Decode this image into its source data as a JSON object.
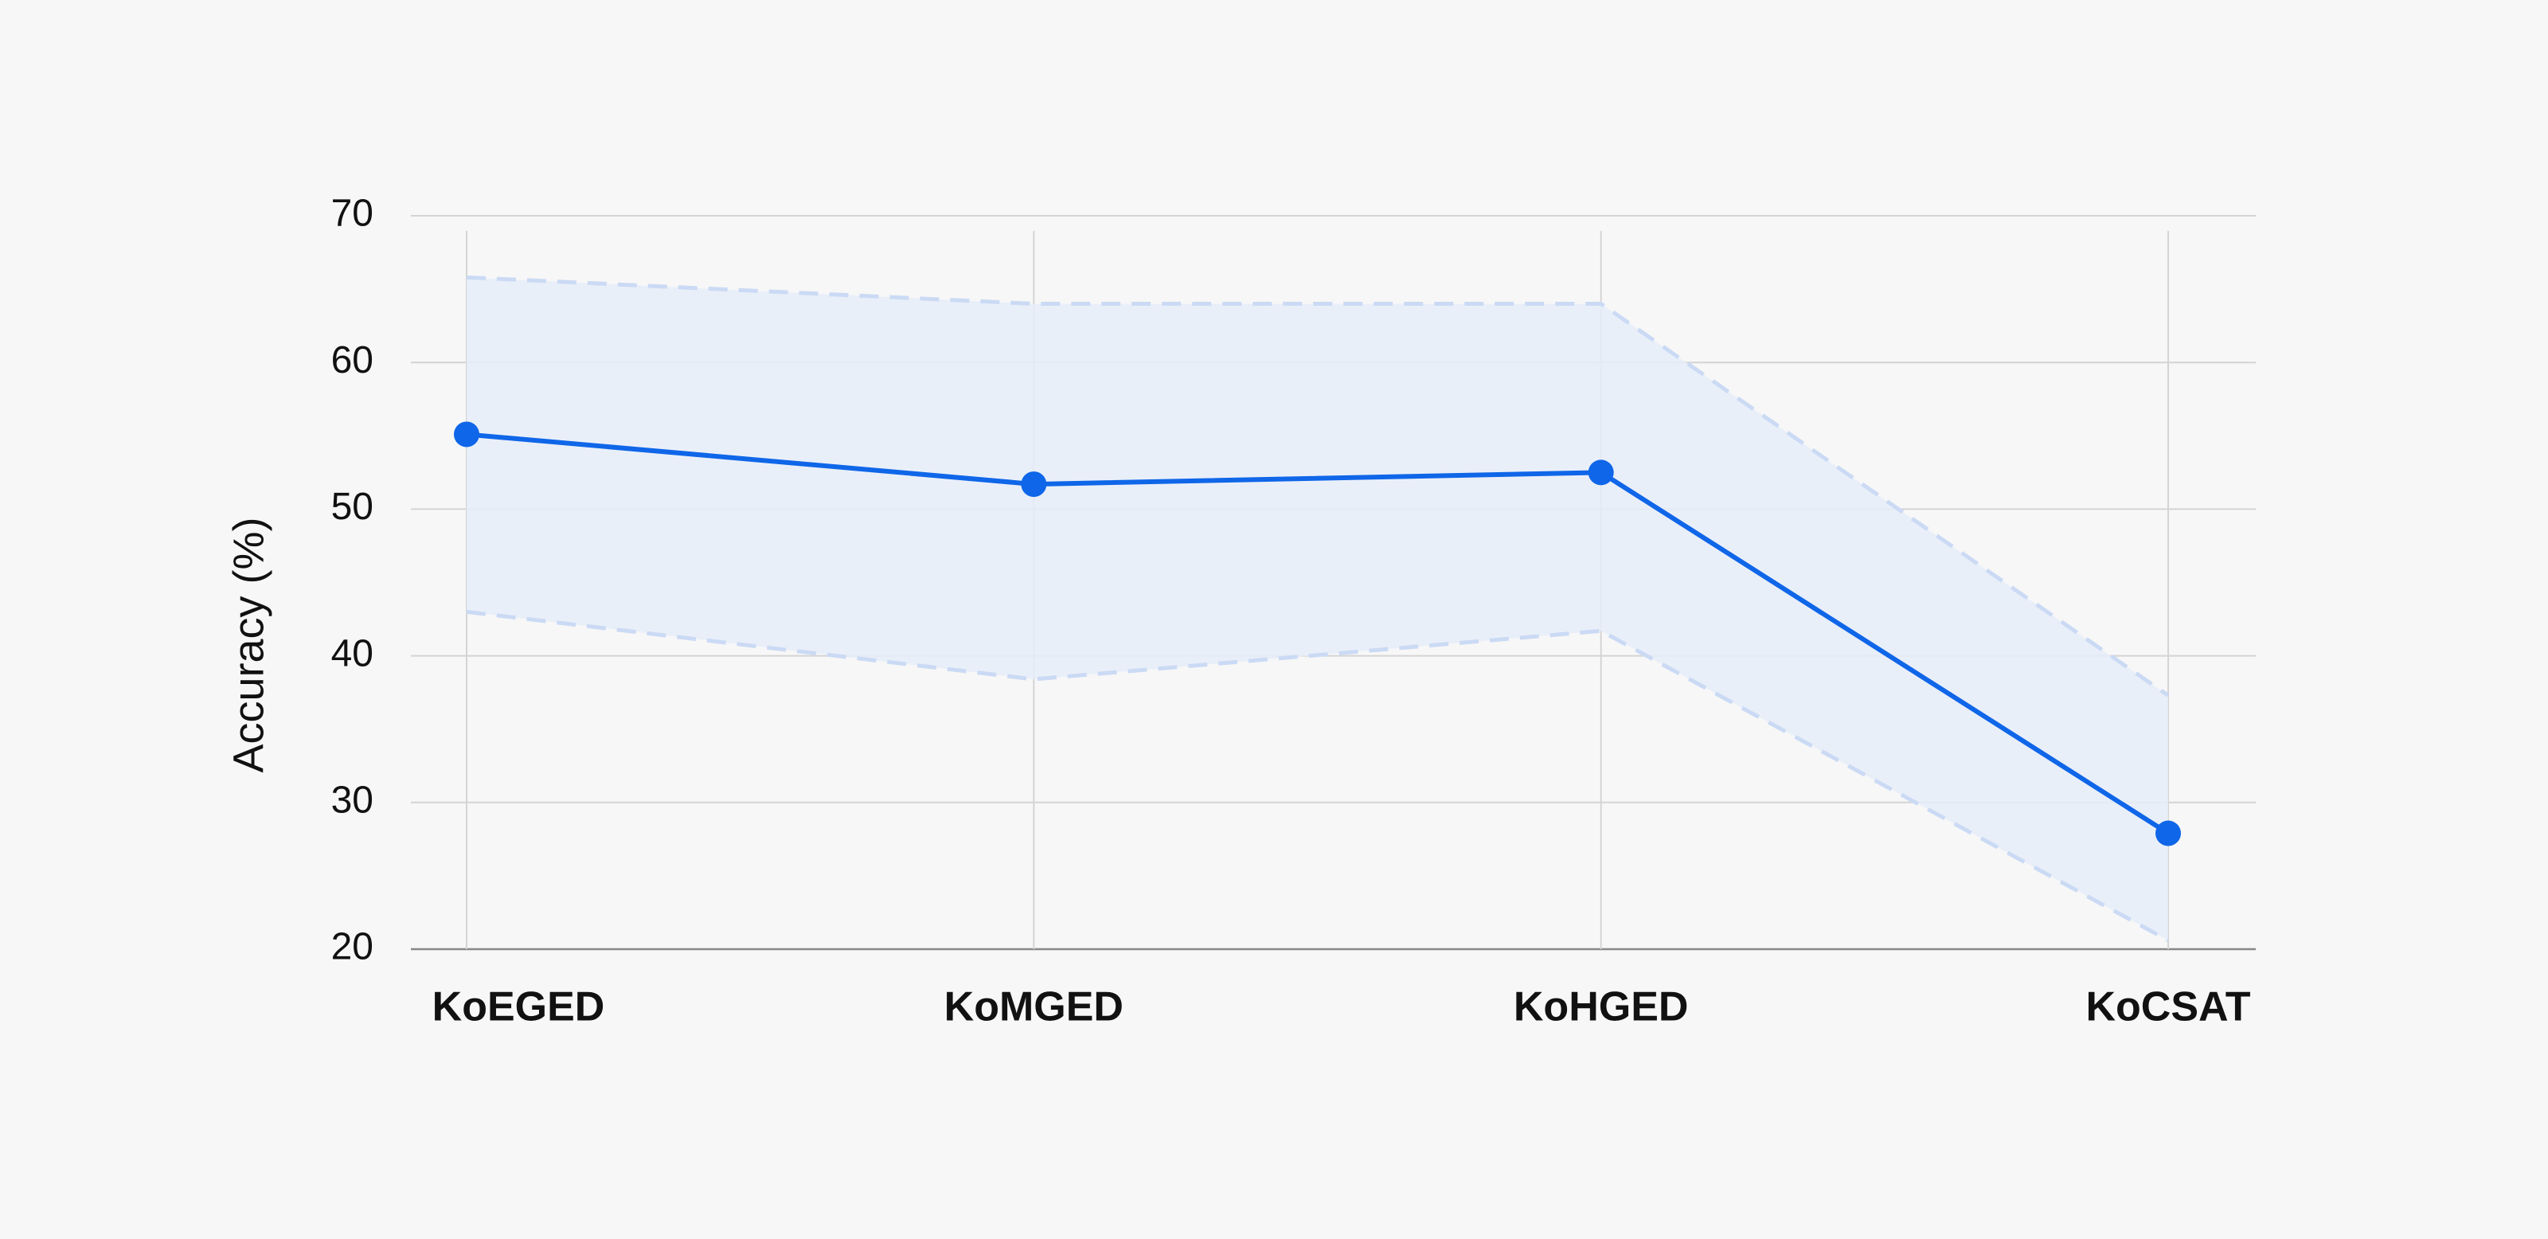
{
  "chart_data": {
    "type": "line",
    "y_label": "Accuracy (%)",
    "categories": [
      "KoEGED",
      "KoMGED",
      "KoHGED",
      "KoCSAT"
    ],
    "series": [
      {
        "color": "#0f66e8",
        "values": [
          55.1,
          51.7,
          52.5,
          27.9
        ]
      }
    ],
    "band": {
      "upper": [
        65.8,
        64.0,
        64.0,
        37.3
      ],
      "lower": [
        43.0,
        38.4,
        41.7,
        20.6
      ],
      "color": "#e6edf9",
      "line_color": "#cbdaf4"
    },
    "ylim": [
      20,
      70
    ],
    "yticks": [
      20,
      30,
      40,
      50,
      60,
      70
    ],
    "grid": true
  }
}
